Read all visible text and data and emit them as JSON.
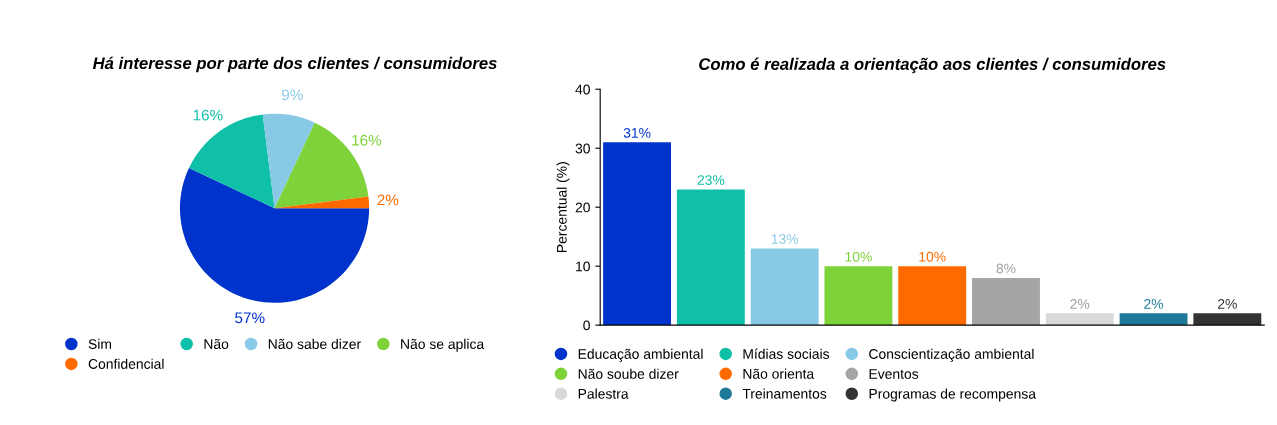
{
  "chart_data": [
    {
      "type": "pie",
      "title": "Há interesse por parte dos clientes / consumidores",
      "categories": [
        "Sim",
        "Não",
        "Não sabe dizer",
        "Não se aplica",
        "Confidencial"
      ],
      "values": [
        57,
        16,
        9,
        16,
        2
      ],
      "colors": [
        "#0033cc",
        "#0fbfa8",
        "#88c9e6",
        "#7ed23a",
        "#ff6a00"
      ],
      "value_labels": [
        "57%",
        "16%",
        "9%",
        "16%",
        "2%"
      ],
      "legend": "bottom"
    },
    {
      "type": "bar",
      "title": "Como é realizada a orientação aos clientes / consumidores",
      "ylabel": "Percentual (%)",
      "categories": [
        null
      ],
      "ylim": [
        0,
        40
      ],
      "yticks": [
        0,
        10,
        20,
        30,
        40
      ],
      "grid": false,
      "legend": "bottom",
      "series": [
        {
          "name": "Educação ambiental",
          "color": "#0033cc",
          "values": [
            31
          ],
          "value_labels": [
            "31%"
          ]
        },
        {
          "name": "Mídias sociais",
          "color": "#0fbfa8",
          "values": [
            23
          ],
          "value_labels": [
            "23%"
          ]
        },
        {
          "name": "Conscientização ambiental",
          "color": "#88c9e6",
          "values": [
            13
          ],
          "value_labels": [
            "13%"
          ]
        },
        {
          "name": "Não soube dizer",
          "color": "#7ed23a",
          "values": [
            10
          ],
          "value_labels": [
            "10%"
          ]
        },
        {
          "name": "Não orienta",
          "color": "#ff6a00",
          "values": [
            10
          ],
          "value_labels": [
            "10%"
          ]
        },
        {
          "name": "Eventos",
          "color": "#a6a4a4",
          "values": [
            8
          ],
          "value_labels": [
            "8%"
          ]
        },
        {
          "name": "Palestra",
          "color": "#d9d9d9",
          "values": [
            2
          ],
          "value_labels": [
            "2%"
          ]
        },
        {
          "name": "Treinamentos",
          "color": "#1f7a99",
          "values": [
            2
          ],
          "value_labels": [
            "2%"
          ]
        },
        {
          "name": "Programas de recompensa",
          "color": "#333333",
          "values": [
            2
          ],
          "value_labels": [
            "2%"
          ]
        }
      ]
    }
  ]
}
